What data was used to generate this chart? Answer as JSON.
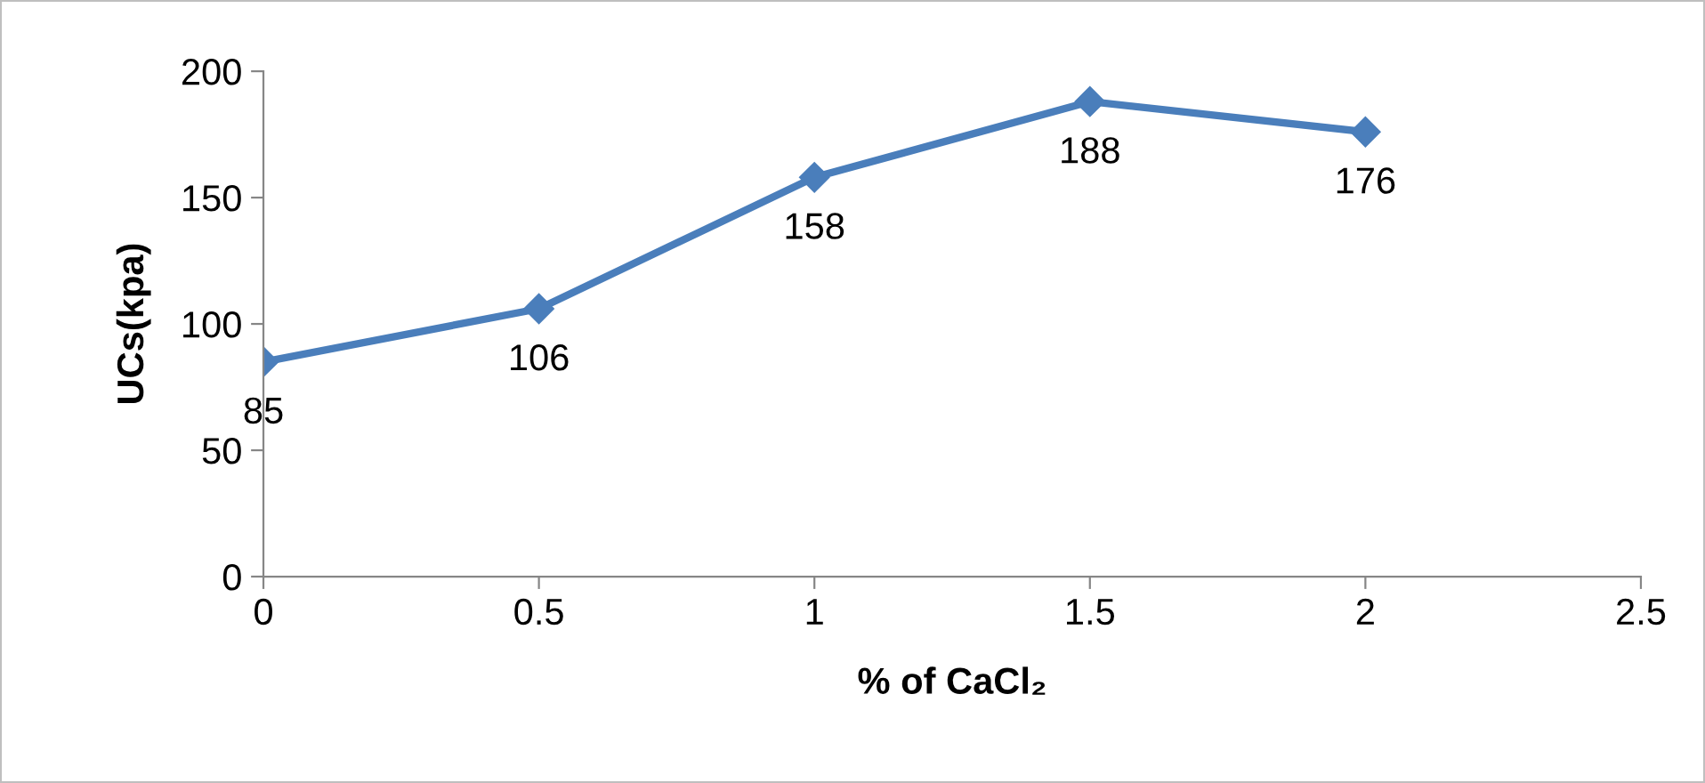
{
  "chart_data": {
    "type": "line",
    "xlabel": "% of CaCl₂",
    "ylabel": "UCs(kpa)",
    "x": [
      0,
      0.5,
      1,
      1.5,
      2
    ],
    "series": [
      {
        "color": "#4a7ebb",
        "values": [
          85,
          106,
          158,
          188,
          176
        ]
      }
    ],
    "xlim": [
      0,
      2.5
    ],
    "xticks": [
      0,
      0.5,
      1,
      1.5,
      2,
      2.5
    ],
    "ylim": [
      0,
      200
    ],
    "yticks": [
      0,
      50,
      100,
      150,
      200
    ],
    "grid": false,
    "legend": false,
    "marker": "diamond",
    "line_style": "solid",
    "data_labels": true
  }
}
